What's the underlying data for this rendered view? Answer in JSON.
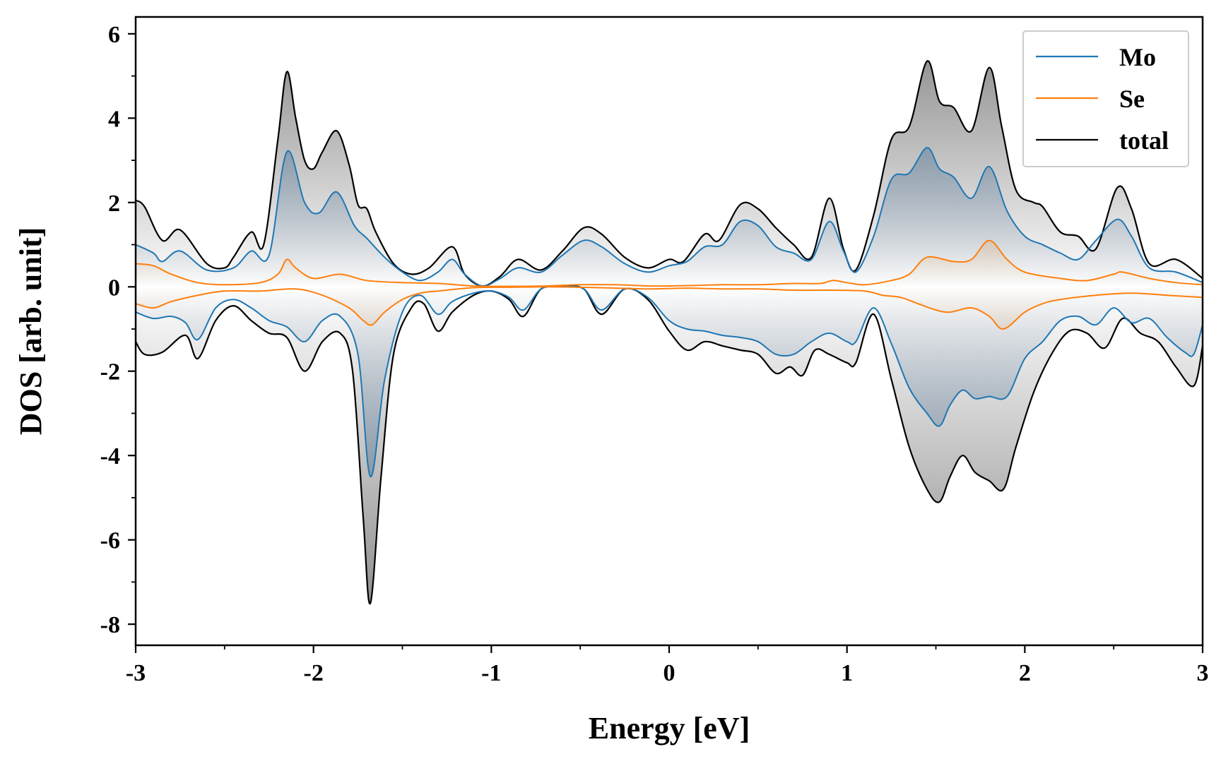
{
  "chart_data": {
    "type": "line",
    "title": "",
    "xlabel": "Energy [eV]",
    "ylabel": "DOS [arb. unit]",
    "xlim": [
      -3,
      3
    ],
    "ylim": [
      -8.5,
      6.4
    ],
    "xticks": [
      -3,
      -2,
      -1,
      0,
      1,
      2,
      3
    ],
    "xtick_labels": [
      "-3",
      "-2",
      "-1",
      "0",
      "1",
      "2",
      "3"
    ],
    "yticks": [
      -8,
      -6,
      -4,
      -2,
      0,
      2,
      4,
      6
    ],
    "ytick_labels": [
      "-8",
      "-6",
      "-4",
      "-2",
      "0",
      "2",
      "4",
      "6"
    ],
    "grid": false,
    "legend_position": "top-right",
    "fill_colors": {
      "total": "#808080",
      "Mo": "#5a7a99",
      "Se": "#e07a10"
    },
    "series": [
      {
        "name": "Mo",
        "color": "#1f77b4",
        "spin_up": {
          "x": [
            -3.0,
            -2.9,
            -2.85,
            -2.75,
            -2.6,
            -2.45,
            -2.35,
            -2.25,
            -2.15,
            -2.05,
            -1.97,
            -1.87,
            -1.77,
            -1.7,
            -1.6,
            -1.5,
            -1.4,
            -1.3,
            -1.22,
            -1.15,
            -1.05,
            -0.95,
            -0.85,
            -0.72,
            -0.6,
            -0.48,
            -0.38,
            -0.25,
            -0.12,
            0.0,
            0.1,
            0.2,
            0.3,
            0.4,
            0.5,
            0.6,
            0.7,
            0.8,
            0.9,
            0.98,
            1.05,
            1.15,
            1.25,
            1.35,
            1.45,
            1.52,
            1.6,
            1.7,
            1.8,
            1.9,
            2.0,
            2.1,
            2.2,
            2.3,
            2.4,
            2.52,
            2.6,
            2.7,
            2.85,
            3.0
          ],
          "y": [
            1.0,
            0.8,
            0.6,
            0.85,
            0.4,
            0.45,
            0.85,
            0.75,
            3.2,
            2.0,
            1.75,
            2.25,
            1.45,
            1.15,
            0.7,
            0.35,
            0.15,
            0.35,
            0.65,
            0.3,
            0.02,
            0.2,
            0.45,
            0.35,
            0.75,
            1.1,
            0.95,
            0.55,
            0.35,
            0.5,
            0.6,
            0.95,
            1.0,
            1.55,
            1.45,
            0.95,
            0.8,
            0.65,
            1.55,
            0.85,
            0.35,
            1.2,
            2.55,
            2.7,
            3.3,
            2.8,
            2.6,
            2.1,
            2.85,
            1.8,
            1.2,
            1.0,
            0.8,
            0.65,
            1.1,
            1.6,
            1.2,
            0.45,
            0.35,
            0.1
          ]
        },
        "spin_down": {
          "x": [
            -3.0,
            -2.9,
            -2.8,
            -2.72,
            -2.65,
            -2.55,
            -2.45,
            -2.35,
            -2.25,
            -2.15,
            -2.05,
            -1.95,
            -1.85,
            -1.75,
            -1.68,
            -1.6,
            -1.5,
            -1.4,
            -1.3,
            -1.22,
            -1.1,
            -1.0,
            -0.9,
            -0.82,
            -0.72,
            -0.6,
            -0.48,
            -0.38,
            -0.25,
            -0.12,
            0.0,
            0.1,
            0.2,
            0.3,
            0.4,
            0.5,
            0.6,
            0.7,
            0.8,
            0.9,
            1.0,
            1.05,
            1.15,
            1.25,
            1.35,
            1.45,
            1.52,
            1.58,
            1.65,
            1.72,
            1.8,
            1.9,
            2.0,
            2.1,
            2.2,
            2.3,
            2.4,
            2.5,
            2.6,
            2.7,
            2.8,
            2.9,
            2.95,
            3.0
          ],
          "y": [
            -0.6,
            -0.75,
            -0.7,
            -0.85,
            -1.25,
            -0.5,
            -0.3,
            -0.5,
            -0.8,
            -0.95,
            -1.3,
            -0.8,
            -0.7,
            -1.6,
            -4.5,
            -2.2,
            -0.6,
            -0.2,
            -0.65,
            -0.35,
            -0.15,
            -0.1,
            -0.25,
            -0.55,
            -0.05,
            0.0,
            -0.05,
            -0.55,
            -0.05,
            -0.25,
            -0.8,
            -1.0,
            -1.05,
            -1.15,
            -1.2,
            -1.3,
            -1.6,
            -1.6,
            -1.3,
            -1.1,
            -1.3,
            -1.3,
            -0.5,
            -1.35,
            -2.4,
            -3.0,
            -3.3,
            -2.8,
            -2.45,
            -2.65,
            -2.6,
            -2.6,
            -1.7,
            -1.3,
            -0.8,
            -0.7,
            -0.9,
            -0.5,
            -0.85,
            -0.75,
            -1.2,
            -1.55,
            -1.6,
            -0.9
          ]
        }
      },
      {
        "name": "Se",
        "color": "#ff7f0e",
        "spin_up": {
          "x": [
            -3.0,
            -2.9,
            -2.8,
            -2.65,
            -2.5,
            -2.3,
            -2.2,
            -2.15,
            -2.1,
            -2.0,
            -1.85,
            -1.7,
            -1.5,
            -1.3,
            -1.1,
            -0.9,
            -0.7,
            -0.5,
            -0.3,
            -0.1,
            0.1,
            0.3,
            0.5,
            0.7,
            0.85,
            0.92,
            1.0,
            1.1,
            1.25,
            1.35,
            1.45,
            1.6,
            1.7,
            1.8,
            1.9,
            2.0,
            2.2,
            2.35,
            2.5,
            2.55,
            2.7,
            2.85,
            3.0
          ],
          "y": [
            0.55,
            0.5,
            0.3,
            0.1,
            0.05,
            0.1,
            0.3,
            0.65,
            0.45,
            0.2,
            0.3,
            0.15,
            0.1,
            0.08,
            0.02,
            0.01,
            0.02,
            0.05,
            0.05,
            0.02,
            0.03,
            0.05,
            0.05,
            0.08,
            0.08,
            0.15,
            0.1,
            0.05,
            0.15,
            0.3,
            0.7,
            0.6,
            0.65,
            1.1,
            0.65,
            0.35,
            0.2,
            0.15,
            0.3,
            0.35,
            0.2,
            0.1,
            0.05
          ]
        },
        "spin_down": {
          "x": [
            -3.0,
            -2.9,
            -2.8,
            -2.65,
            -2.5,
            -2.3,
            -2.1,
            -1.95,
            -1.8,
            -1.72,
            -1.67,
            -1.6,
            -1.5,
            -1.4,
            -1.3,
            -1.1,
            -0.9,
            -0.7,
            -0.5,
            -0.3,
            -0.1,
            0.1,
            0.3,
            0.5,
            0.7,
            0.9,
            1.1,
            1.2,
            1.3,
            1.4,
            1.5,
            1.58,
            1.7,
            1.8,
            1.88,
            2.0,
            2.1,
            2.2,
            2.4,
            2.6,
            2.8,
            3.0
          ],
          "y": [
            -0.4,
            -0.5,
            -0.35,
            -0.2,
            -0.1,
            -0.1,
            -0.05,
            -0.2,
            -0.5,
            -0.8,
            -0.9,
            -0.6,
            -0.3,
            -0.15,
            -0.1,
            -0.02,
            -0.01,
            0.0,
            -0.01,
            -0.03,
            -0.05,
            -0.03,
            -0.05,
            -0.05,
            -0.08,
            -0.08,
            -0.1,
            -0.2,
            -0.25,
            -0.4,
            -0.55,
            -0.6,
            -0.5,
            -0.7,
            -1.0,
            -0.6,
            -0.4,
            -0.3,
            -0.2,
            -0.15,
            -0.2,
            -0.25
          ]
        }
      },
      {
        "name": "total",
        "color": "#000000",
        "spin_up": {
          "x": [
            -3.0,
            -2.95,
            -2.85,
            -2.75,
            -2.6,
            -2.5,
            -2.45,
            -2.35,
            -2.28,
            -2.2,
            -2.15,
            -2.1,
            -2.05,
            -2.0,
            -1.95,
            -1.87,
            -1.8,
            -1.75,
            -1.7,
            -1.65,
            -1.55,
            -1.45,
            -1.35,
            -1.22,
            -1.15,
            -1.05,
            -0.95,
            -0.85,
            -0.72,
            -0.6,
            -0.48,
            -0.38,
            -0.25,
            -0.12,
            0.0,
            0.08,
            0.2,
            0.28,
            0.4,
            0.5,
            0.6,
            0.7,
            0.8,
            0.9,
            0.98,
            1.05,
            1.15,
            1.25,
            1.35,
            1.45,
            1.52,
            1.6,
            1.7,
            1.8,
            1.87,
            1.95,
            2.05,
            2.1,
            2.2,
            2.3,
            2.4,
            2.52,
            2.6,
            2.7,
            2.85,
            3.0
          ],
          "y": [
            2.05,
            1.9,
            1.1,
            1.35,
            0.55,
            0.45,
            0.7,
            1.3,
            1.0,
            3.5,
            5.1,
            4.0,
            3.0,
            2.8,
            3.2,
            3.7,
            2.9,
            1.95,
            1.85,
            1.3,
            0.55,
            0.3,
            0.45,
            0.95,
            0.3,
            0.02,
            0.25,
            0.65,
            0.4,
            0.85,
            1.4,
            1.25,
            0.7,
            0.45,
            0.65,
            0.6,
            1.25,
            1.1,
            1.95,
            1.85,
            1.4,
            1.0,
            0.7,
            2.1,
            0.9,
            0.4,
            1.7,
            3.5,
            3.8,
            5.35,
            4.4,
            4.25,
            3.7,
            5.2,
            3.8,
            2.3,
            2.0,
            1.9,
            1.3,
            1.2,
            0.9,
            2.35,
            1.85,
            0.55,
            0.65,
            0.2
          ]
        },
        "spin_down": {
          "x": [
            -3.0,
            -2.95,
            -2.85,
            -2.72,
            -2.65,
            -2.55,
            -2.45,
            -2.35,
            -2.25,
            -2.15,
            -2.05,
            -1.95,
            -1.85,
            -1.78,
            -1.72,
            -1.68,
            -1.62,
            -1.55,
            -1.45,
            -1.38,
            -1.3,
            -1.22,
            -1.1,
            -1.0,
            -0.9,
            -0.82,
            -0.72,
            -0.6,
            -0.48,
            -0.38,
            -0.25,
            -0.12,
            0.0,
            0.1,
            0.2,
            0.3,
            0.4,
            0.5,
            0.6,
            0.68,
            0.75,
            0.82,
            0.9,
            1.0,
            1.05,
            1.15,
            1.25,
            1.35,
            1.45,
            1.52,
            1.58,
            1.65,
            1.72,
            1.8,
            1.88,
            1.95,
            2.05,
            2.15,
            2.25,
            2.35,
            2.45,
            2.55,
            2.65,
            2.75,
            2.85,
            2.95,
            3.0
          ],
          "y": [
            -1.3,
            -1.6,
            -1.55,
            -1.15,
            -1.7,
            -0.8,
            -0.45,
            -0.8,
            -1.1,
            -1.2,
            -2.0,
            -1.3,
            -1.1,
            -2.0,
            -5.5,
            -7.5,
            -4.5,
            -1.6,
            -0.5,
            -0.4,
            -1.05,
            -0.6,
            -0.2,
            -0.1,
            -0.3,
            -0.7,
            -0.05,
            0.0,
            -0.05,
            -0.65,
            -0.05,
            -0.3,
            -1.05,
            -1.5,
            -1.3,
            -1.4,
            -1.5,
            -1.6,
            -2.05,
            -1.9,
            -2.1,
            -1.5,
            -1.6,
            -1.8,
            -1.8,
            -0.65,
            -2.2,
            -3.8,
            -4.8,
            -5.1,
            -4.5,
            -4.0,
            -4.4,
            -4.6,
            -4.8,
            -3.8,
            -2.5,
            -1.6,
            -1.05,
            -1.1,
            -1.45,
            -0.75,
            -1.1,
            -1.3,
            -1.9,
            -2.35,
            -1.4
          ]
        }
      }
    ]
  }
}
